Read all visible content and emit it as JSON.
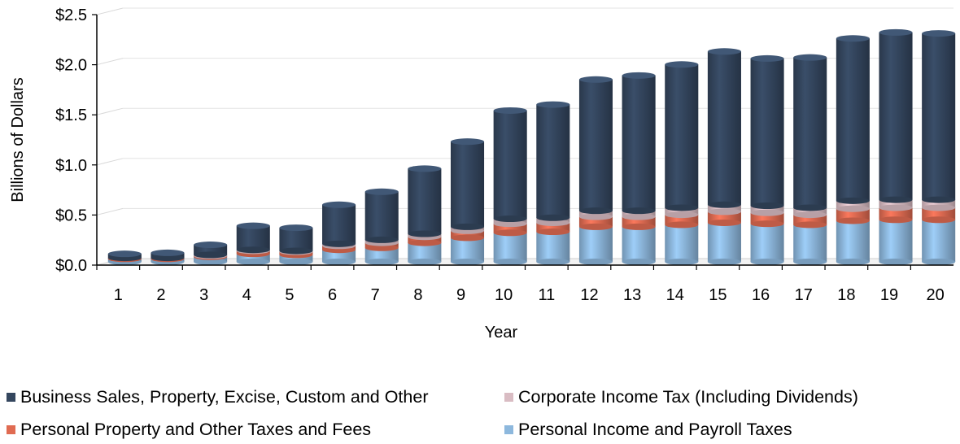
{
  "chart_data": {
    "type": "bar",
    "stacked": true,
    "title": "",
    "xlabel": "Year",
    "ylabel": "Billions of Dollars",
    "ylim": [
      0,
      2.5
    ],
    "yticks": [
      "$0.0",
      "$0.5",
      "$1.0",
      "$1.5",
      "$2.0",
      "$2.5"
    ],
    "ytick_values": [
      0,
      0.5,
      1.0,
      1.5,
      2.0,
      2.5
    ],
    "categories": [
      "1",
      "2",
      "3",
      "4",
      "5",
      "6",
      "7",
      "8",
      "9",
      "10",
      "11",
      "12",
      "13",
      "14",
      "15",
      "16",
      "17",
      "18",
      "19",
      "20"
    ],
    "grid": true,
    "legend_position": "bottom",
    "series": [
      {
        "name": "Personal Income and Payroll Taxes",
        "color": "#8db8dd",
        "values": [
          0.03,
          0.03,
          0.05,
          0.08,
          0.07,
          0.12,
          0.14,
          0.19,
          0.24,
          0.29,
          0.3,
          0.35,
          0.35,
          0.37,
          0.39,
          0.38,
          0.37,
          0.41,
          0.42,
          0.42
        ]
      },
      {
        "name": "Personal Property and Other Taxes and Fees",
        "color": "#e06b52",
        "values": [
          0.01,
          0.01,
          0.01,
          0.03,
          0.03,
          0.04,
          0.05,
          0.06,
          0.07,
          0.09,
          0.09,
          0.1,
          0.1,
          0.1,
          0.11,
          0.11,
          0.1,
          0.12,
          0.12,
          0.12
        ]
      },
      {
        "name": "Corporate Income Tax (Including Dividends)",
        "color": "#d9bcc3",
        "values": [
          0.0,
          0.0,
          0.01,
          0.01,
          0.01,
          0.02,
          0.03,
          0.03,
          0.04,
          0.05,
          0.05,
          0.06,
          0.06,
          0.07,
          0.07,
          0.07,
          0.07,
          0.08,
          0.08,
          0.08
        ]
      },
      {
        "name": "Business Sales, Property, Excise, Custom and Other",
        "color": "#34465e",
        "values": [
          0.04,
          0.05,
          0.1,
          0.24,
          0.23,
          0.39,
          0.48,
          0.65,
          0.85,
          1.08,
          1.13,
          1.31,
          1.35,
          1.43,
          1.53,
          1.47,
          1.5,
          1.62,
          1.67,
          1.66
        ]
      }
    ]
  },
  "legend": {
    "items": [
      {
        "label": "Business Sales, Property, Excise, Custom and Other",
        "color": "#34465e"
      },
      {
        "label": "Corporate Income Tax (Including Dividends)",
        "color": "#d9bcc3"
      },
      {
        "label": "Personal Property and Other Taxes and Fees",
        "color": "#e06b52"
      },
      {
        "label": "Personal Income and Payroll Taxes",
        "color": "#8db8dd"
      }
    ]
  }
}
